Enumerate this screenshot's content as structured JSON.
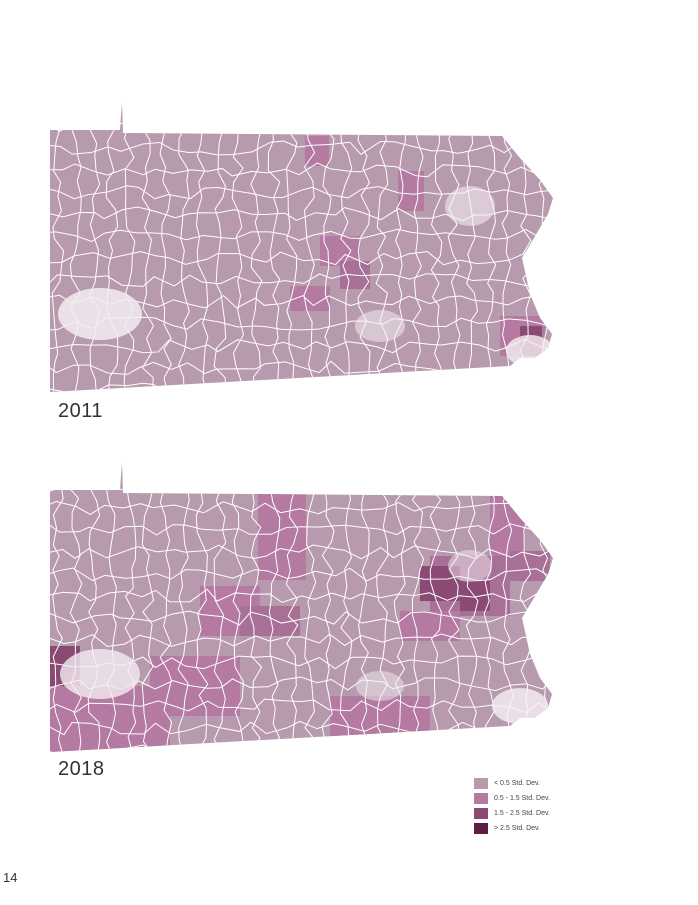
{
  "maps": [
    {
      "year_label": "2011",
      "highlights": "few"
    },
    {
      "year_label": "2018",
      "highlights": "many"
    }
  ],
  "legend": {
    "items": [
      {
        "label": "< 0.5 Std. Dev.",
        "color": "#b89aae"
      },
      {
        "label": "0.5 - 1.5 Std. Dev.",
        "color": "#b47aa2"
      },
      {
        "label": "1.5 - 2.5 Std. Dev.",
        "color": "#8a4a74"
      },
      {
        "label": "> 2.5 Std. Dev.",
        "color": "#5a1f46"
      }
    ]
  },
  "page_number": "14"
}
